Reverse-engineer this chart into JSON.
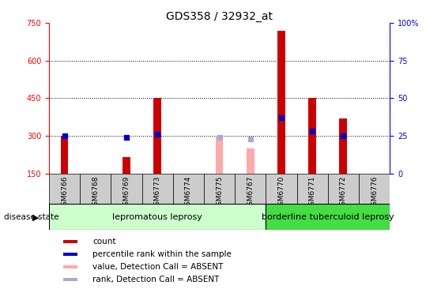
{
  "title": "GDS358 / 32932_at",
  "samples": [
    "GSM6766",
    "GSM6768",
    "GSM6769",
    "GSM6773",
    "GSM6774",
    "GSM6775",
    "GSM6767",
    "GSM6770",
    "GSM6771",
    "GSM6772",
    "GSM6776"
  ],
  "count_values": [
    300,
    null,
    215,
    450,
    null,
    null,
    null,
    720,
    450,
    370,
    null
  ],
  "rank_values": [
    25,
    null,
    24,
    26,
    null,
    null,
    null,
    37,
    28,
    25,
    null
  ],
  "absent_count_values": [
    null,
    null,
    null,
    null,
    null,
    300,
    250,
    null,
    null,
    null,
    null
  ],
  "absent_rank_values": [
    null,
    null,
    null,
    null,
    null,
    24,
    23,
    null,
    null,
    null,
    null
  ],
  "n_group1": 7,
  "n_group2": 4,
  "group1_label": "lepromatous leprosy",
  "group2_label": "borderline tuberculoid leprosy",
  "disease_state_label": "disease state",
  "ylim_left": [
    150,
    750
  ],
  "ylim_right": [
    0,
    100
  ],
  "yticks_left": [
    150,
    300,
    450,
    600,
    750
  ],
  "yticks_right": [
    0,
    25,
    50,
    75,
    100
  ],
  "bar_width": 0.25,
  "bar_color_count": "#cc0000",
  "bar_color_rank": "#0000cc",
  "bar_color_absent_count": "#ffaaaa",
  "bar_color_absent_rank": "#aaaacc",
  "group1_bg": "#ccffcc",
  "group2_bg": "#44dd44",
  "header_bg": "#cccccc",
  "background_color": "#ffffff",
  "title_fontsize": 10,
  "tick_fontsize": 7,
  "label_fontsize": 7.5,
  "sample_fontsize": 6.5
}
